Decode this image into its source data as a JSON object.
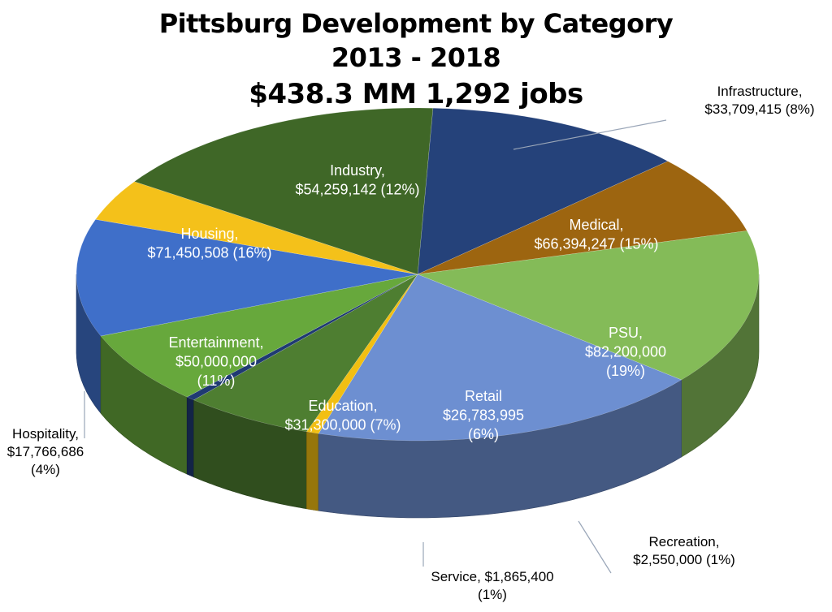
{
  "chart_data": {
    "type": "pie",
    "title_lines": [
      "Pittsburg Development by Category",
      "2013 - 2018",
      "$438.3 MM  1,292 jobs"
    ],
    "slices": [
      {
        "name": "Industry",
        "amount": "$54,259,142",
        "percent": "(12%)",
        "value": 54259142,
        "color": "#25427a",
        "label": [
          "Industry,",
          "$54,259,142  (12%)"
        ]
      },
      {
        "name": "Infrastructure",
        "amount": "$33,709,415",
        "percent": "(8%)",
        "value": 33709415,
        "color": "#9d6510",
        "label": [
          "Infrastructure,",
          "$33,709,415  (8%)"
        ]
      },
      {
        "name": "Medical",
        "amount": "$66,394,247",
        "percent": "(15%)",
        "value": 66394247,
        "color": "#84bb58",
        "label": [
          "Medical,",
          "$66,394,247  (15%)"
        ]
      },
      {
        "name": "PSU",
        "amount": "$82,200,000",
        "percent": "(19%)",
        "value": 82200000,
        "color": "#6d8fd1",
        "label": [
          "PSU,",
          "$82,200,000",
          "(19%)"
        ]
      },
      {
        "name": "Recreation",
        "amount": "$2,550,000",
        "percent": "(1%)",
        "value": 2550000,
        "color": "#f2bf12",
        "label": [
          "Recreation,",
          "$2,550,000  (1%)"
        ]
      },
      {
        "name": "Retail",
        "amount": "$26,783,995",
        "percent": "(6%)",
        "value": 26783995,
        "color": "#4e7e31",
        "label": [
          "Retail",
          "$26,783,995",
          "(6%)"
        ]
      },
      {
        "name": "Service",
        "amount": "$1,865,400",
        "percent": "(1%)",
        "value": 1865400,
        "color": "#1f3a73",
        "label": [
          "Service,  $1,865,400",
          "(1%)"
        ]
      },
      {
        "name": "Education",
        "amount": "$31,300,000",
        "percent": "(7%)",
        "value": 31300000,
        "color": "#67a83c",
        "label": [
          "Education,",
          "$31,300,000  (7%)"
        ]
      },
      {
        "name": "Entertainment",
        "amount": "$50,000,000",
        "percent": "(11%)",
        "value": 50000000,
        "color": "#3f6fc9",
        "label": [
          "Entertainment,",
          "$50,000,000",
          "(11%)"
        ]
      },
      {
        "name": "Hospitality",
        "amount": "$17,766,686",
        "percent": "(4%)",
        "value": 17766686,
        "color": "#f4c11a",
        "label": [
          "Hospitality,",
          "$17,766,686",
          "(4%)"
        ]
      },
      {
        "name": "Housing",
        "amount": "$71,450,508",
        "percent": "(16%)",
        "value": 71450508,
        "color": "#3f6727",
        "label": [
          "Housing,",
          "$71,450,508  (16%)"
        ]
      }
    ]
  }
}
